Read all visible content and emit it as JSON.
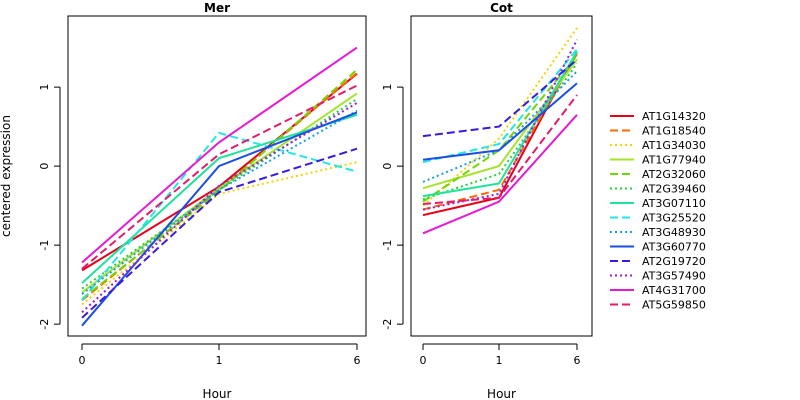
{
  "chart_data": {
    "type": "line",
    "xlabel": "Hour",
    "ylabel": "centered expression",
    "x_ticks": [
      "0",
      "1",
      "6"
    ],
    "y_ticks": [
      -2,
      -1,
      0,
      1
    ],
    "ylim": [
      -2.15,
      1.9
    ],
    "grid": false,
    "legend_position": "right",
    "series_styles": [
      {
        "name": "AT1G14320",
        "color": "#e6001a",
        "dash": "solid"
      },
      {
        "name": "AT1G18540",
        "color": "#ff6a00",
        "dash": "long-dash"
      },
      {
        "name": "AT1G34030",
        "color": "#f2d400",
        "dash": "dotted"
      },
      {
        "name": "AT1G77940",
        "color": "#a6e22e",
        "dash": "solid"
      },
      {
        "name": "AT2G32060",
        "color": "#73d600",
        "dash": "long-dash"
      },
      {
        "name": "AT2G39460",
        "color": "#22d43a",
        "dash": "dotted"
      },
      {
        "name": "AT3G07110",
        "color": "#1ee39a",
        "dash": "solid"
      },
      {
        "name": "AT3G25520",
        "color": "#22e6e6",
        "dash": "long-dash"
      },
      {
        "name": "AT3G48930",
        "color": "#1a9cf0",
        "dash": "dotted"
      },
      {
        "name": "AT3G60770",
        "color": "#1a4fe6",
        "dash": "solid"
      },
      {
        "name": "AT2G19720",
        "color": "#3a1ae0",
        "dash": "long-dash"
      },
      {
        "name": "AT3G57490",
        "color": "#9a1ae6",
        "dash": "dotted"
      },
      {
        "name": "AT4G31700",
        "color": "#e61ad2",
        "dash": "solid"
      },
      {
        "name": "AT5G59850",
        "color": "#e61a6a",
        "dash": "long-dash"
      }
    ],
    "panels": [
      {
        "title": "Mer",
        "series": [
          {
            "name": "AT1G14320",
            "values": [
              -1.32,
              -0.26,
              1.17
            ]
          },
          {
            "name": "AT1G18540",
            "values": [
              -1.7,
              -0.3,
              1.18
            ]
          },
          {
            "name": "AT1G34030",
            "values": [
              -1.75,
              -0.35,
              0.05
            ]
          },
          {
            "name": "AT1G77940",
            "values": [
              -1.6,
              -0.28,
              0.92
            ]
          },
          {
            "name": "AT2G32060",
            "values": [
              -1.68,
              -0.32,
              1.22
            ]
          },
          {
            "name": "AT2G39460",
            "values": [
              -1.55,
              -0.3,
              0.85
            ]
          },
          {
            "name": "AT3G07110",
            "values": [
              -1.48,
              0.1,
              0.65
            ]
          },
          {
            "name": "AT3G25520",
            "values": [
              -1.7,
              0.42,
              -0.07
            ]
          },
          {
            "name": "AT3G48930",
            "values": [
              -1.62,
              -0.3,
              0.7
            ]
          },
          {
            "name": "AT3G60770",
            "values": [
              -2.02,
              0.0,
              0.68
            ]
          },
          {
            "name": "AT2G19720",
            "values": [
              -1.92,
              -0.33,
              0.22
            ]
          },
          {
            "name": "AT3G57490",
            "values": [
              -1.85,
              -0.25,
              0.8
            ]
          },
          {
            "name": "AT4G31700",
            "values": [
              -1.22,
              0.3,
              1.5
            ]
          },
          {
            "name": "AT5G59850",
            "values": [
              -1.3,
              0.15,
              1.02
            ]
          }
        ]
      },
      {
        "title": "Cot",
        "series": [
          {
            "name": "AT1G14320",
            "values": [
              -0.62,
              -0.4,
              1.45
            ]
          },
          {
            "name": "AT1G18540",
            "values": [
              -0.55,
              -0.3,
              1.42
            ]
          },
          {
            "name": "AT1G34030",
            "values": [
              -0.5,
              0.35,
              1.75
            ]
          },
          {
            "name": "AT1G77940",
            "values": [
              -0.28,
              0.0,
              1.35
            ]
          },
          {
            "name": "AT2G32060",
            "values": [
              -0.45,
              0.2,
              1.4
            ]
          },
          {
            "name": "AT2G39460",
            "values": [
              -0.42,
              -0.1,
              1.3
            ]
          },
          {
            "name": "AT3G07110",
            "values": [
              -0.38,
              -0.22,
              1.45
            ]
          },
          {
            "name": "AT3G25520",
            "values": [
              0.05,
              0.28,
              1.48
            ]
          },
          {
            "name": "AT3G48930",
            "values": [
              -0.2,
              0.2,
              1.2
            ]
          },
          {
            "name": "AT3G60770",
            "values": [
              0.08,
              0.2,
              1.05
            ]
          },
          {
            "name": "AT2G19720",
            "values": [
              0.38,
              0.5,
              1.35
            ]
          },
          {
            "name": "AT3G57490",
            "values": [
              -0.55,
              -0.35,
              1.6
            ]
          },
          {
            "name": "AT4G31700",
            "values": [
              -0.85,
              -0.45,
              0.65
            ]
          },
          {
            "name": "AT5G59850",
            "values": [
              -0.48,
              -0.4,
              0.9
            ]
          }
        ]
      }
    ]
  }
}
